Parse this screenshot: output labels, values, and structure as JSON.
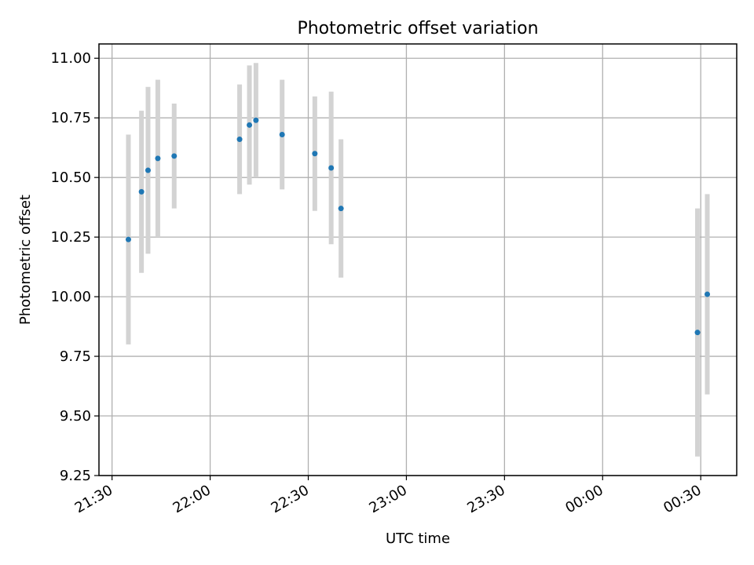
{
  "chart_data": {
    "type": "scatter",
    "title": "Photometric offset variation",
    "xlabel": "UTC time",
    "ylabel": "Photometric offset",
    "x_ticks": [
      "21:30",
      "22:00",
      "22:30",
      "23:00",
      "23:30",
      "00:00",
      "00:30"
    ],
    "y_ticks": [
      "9.25",
      "9.50",
      "9.75",
      "10.00",
      "10.25",
      "10.50",
      "10.75",
      "11.00"
    ],
    "xlim_minutes_after_2130": [
      -4,
      191
    ],
    "ylim": [
      9.25,
      11.06
    ],
    "grid": true,
    "colors": {
      "point": "#1f77b4",
      "errorbar": "#d3d3d3",
      "grid": "#b0b0b0"
    },
    "points": [
      {
        "t": "21:35",
        "y": 10.24,
        "yerr": 0.44
      },
      {
        "t": "21:39",
        "y": 10.44,
        "yerr": 0.34
      },
      {
        "t": "21:41",
        "y": 10.53,
        "yerr": 0.35
      },
      {
        "t": "21:44",
        "y": 10.58,
        "yerr": 0.33
      },
      {
        "t": "21:49",
        "y": 10.59,
        "yerr": 0.22
      },
      {
        "t": "22:09",
        "y": 10.66,
        "yerr": 0.23
      },
      {
        "t": "22:12",
        "y": 10.72,
        "yerr": 0.25
      },
      {
        "t": "22:14",
        "y": 10.74,
        "yerr": 0.24
      },
      {
        "t": "22:22",
        "y": 10.68,
        "yerr": 0.23
      },
      {
        "t": "22:32",
        "y": 10.6,
        "yerr": 0.24
      },
      {
        "t": "22:37",
        "y": 10.54,
        "yerr": 0.32
      },
      {
        "t": "22:40",
        "y": 10.37,
        "yerr": 0.29
      },
      {
        "t": "00:29",
        "y": 9.85,
        "yerr": 0.52
      },
      {
        "t": "00:32",
        "y": 10.01,
        "yerr": 0.42
      }
    ]
  }
}
